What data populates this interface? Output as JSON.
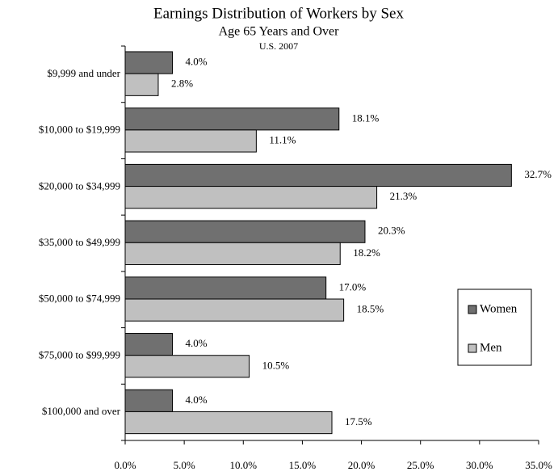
{
  "chart_data": {
    "type": "bar",
    "orientation": "horizontal",
    "title": "Earnings Distribution of Workers by Sex",
    "subtitle": "Age 65 Years and Over",
    "note": "U.S. 2007",
    "categories": [
      "$9,999 and under",
      "$10,000 to $19,999",
      "$20,000 to $34,999",
      "$35,000 to $49,999",
      "$50,000 to $74,999",
      "$75,000 to $99,999",
      "$100,000 and over"
    ],
    "series": [
      {
        "name": "Women",
        "color": "#707070",
        "values": [
          4.0,
          18.1,
          32.7,
          20.3,
          17.0,
          4.0,
          4.0
        ],
        "value_labels": [
          "4.0%",
          "18.1%",
          "32.7%",
          "20.3%",
          "17.0%",
          "4.0%",
          "4.0%"
        ]
      },
      {
        "name": "Men",
        "color": "#c0c0c0",
        "values": [
          2.8,
          11.1,
          21.3,
          18.2,
          18.5,
          10.5,
          17.5
        ],
        "value_labels": [
          "2.8%",
          "11.1%",
          "21.3%",
          "18.2%",
          "18.5%",
          "10.5%",
          "17.5%"
        ]
      }
    ],
    "xlim": [
      0,
      35
    ],
    "xticks": [
      {
        "value": 0,
        "label": "0.0%"
      },
      {
        "value": 5,
        "label": "5.0%"
      },
      {
        "value": 10,
        "label": "10.0%"
      },
      {
        "value": 15,
        "label": "15.0%"
      },
      {
        "value": 20,
        "label": "20.0%"
      },
      {
        "value": 25,
        "label": "25.0%"
      },
      {
        "value": 30,
        "label": "30.0%"
      },
      {
        "value": 35,
        "label": "35.0%"
      }
    ],
    "grid": false,
    "legend": "right"
  }
}
